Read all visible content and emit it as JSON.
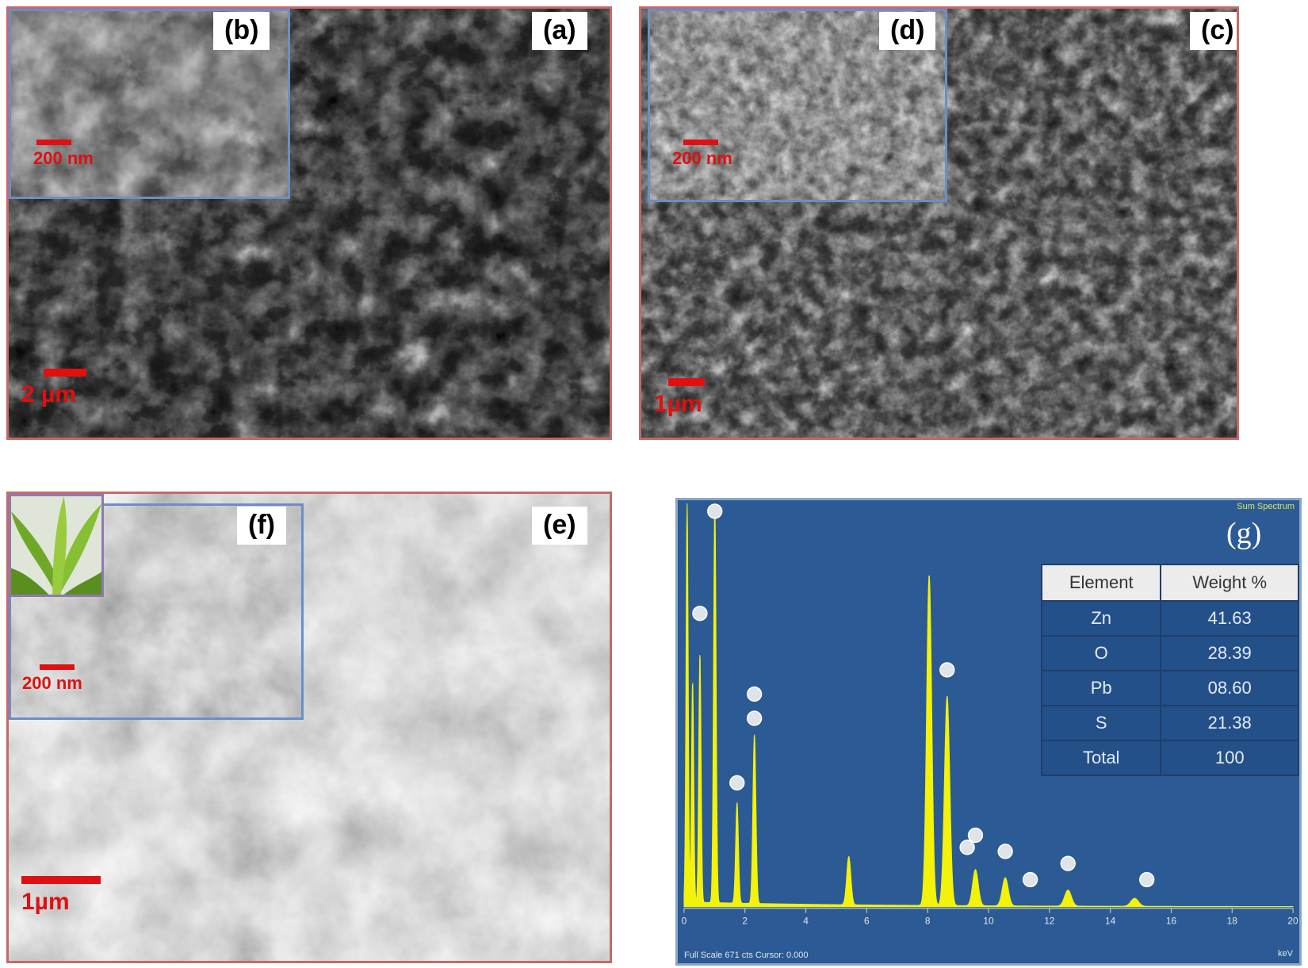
{
  "panels": {
    "a": {
      "tag": "(a)",
      "scale": "2 µm"
    },
    "b": {
      "tag": "(b)",
      "scale": "200 nm"
    },
    "c": {
      "tag": "(c)",
      "scale": "1µm"
    },
    "d": {
      "tag": "(d)",
      "scale": "200 nm"
    },
    "e": {
      "tag": "(e)",
      "scale": "1µm"
    },
    "f": {
      "tag": "(f)",
      "scale": "200 nm"
    },
    "g": {
      "tag": "(g)"
    }
  },
  "eds": {
    "spectrum_label": "Sum Spectrum",
    "footer": "Full Scale 671 cts Cursor: 0.000",
    "unit": "keV",
    "table": {
      "headers": [
        "Element",
        "Weight %"
      ],
      "rows": [
        {
          "element": "Zn",
          "weight": "41.63"
        },
        {
          "element": "O",
          "weight": "28.39"
        },
        {
          "element": "Pb",
          "weight": "08.60"
        },
        {
          "element": "S",
          "weight": "21.38"
        },
        {
          "element": "Total",
          "weight": "100"
        }
      ]
    }
  },
  "chart_data": {
    "type": "line",
    "x_ticks": [
      "0",
      "2",
      "4",
      "6",
      "8",
      "10",
      "12",
      "14",
      "16",
      "18",
      "20"
    ],
    "xlim": [
      0,
      20
    ],
    "peaks_keV": [
      0.1,
      0.28,
      0.52,
      1.01,
      1.74,
      2.31,
      5.41,
      8.05,
      8.64,
      9.57,
      10.55,
      12.61,
      14.8
    ],
    "peak_heights_rel": [
      1.0,
      0.55,
      0.62,
      1.0,
      0.25,
      0.42,
      0.12,
      0.82,
      0.52,
      0.09,
      0.07,
      0.04,
      0.02
    ],
    "colors": {
      "spectrum": "#f2f20a",
      "background": "#2c5a94"
    }
  }
}
